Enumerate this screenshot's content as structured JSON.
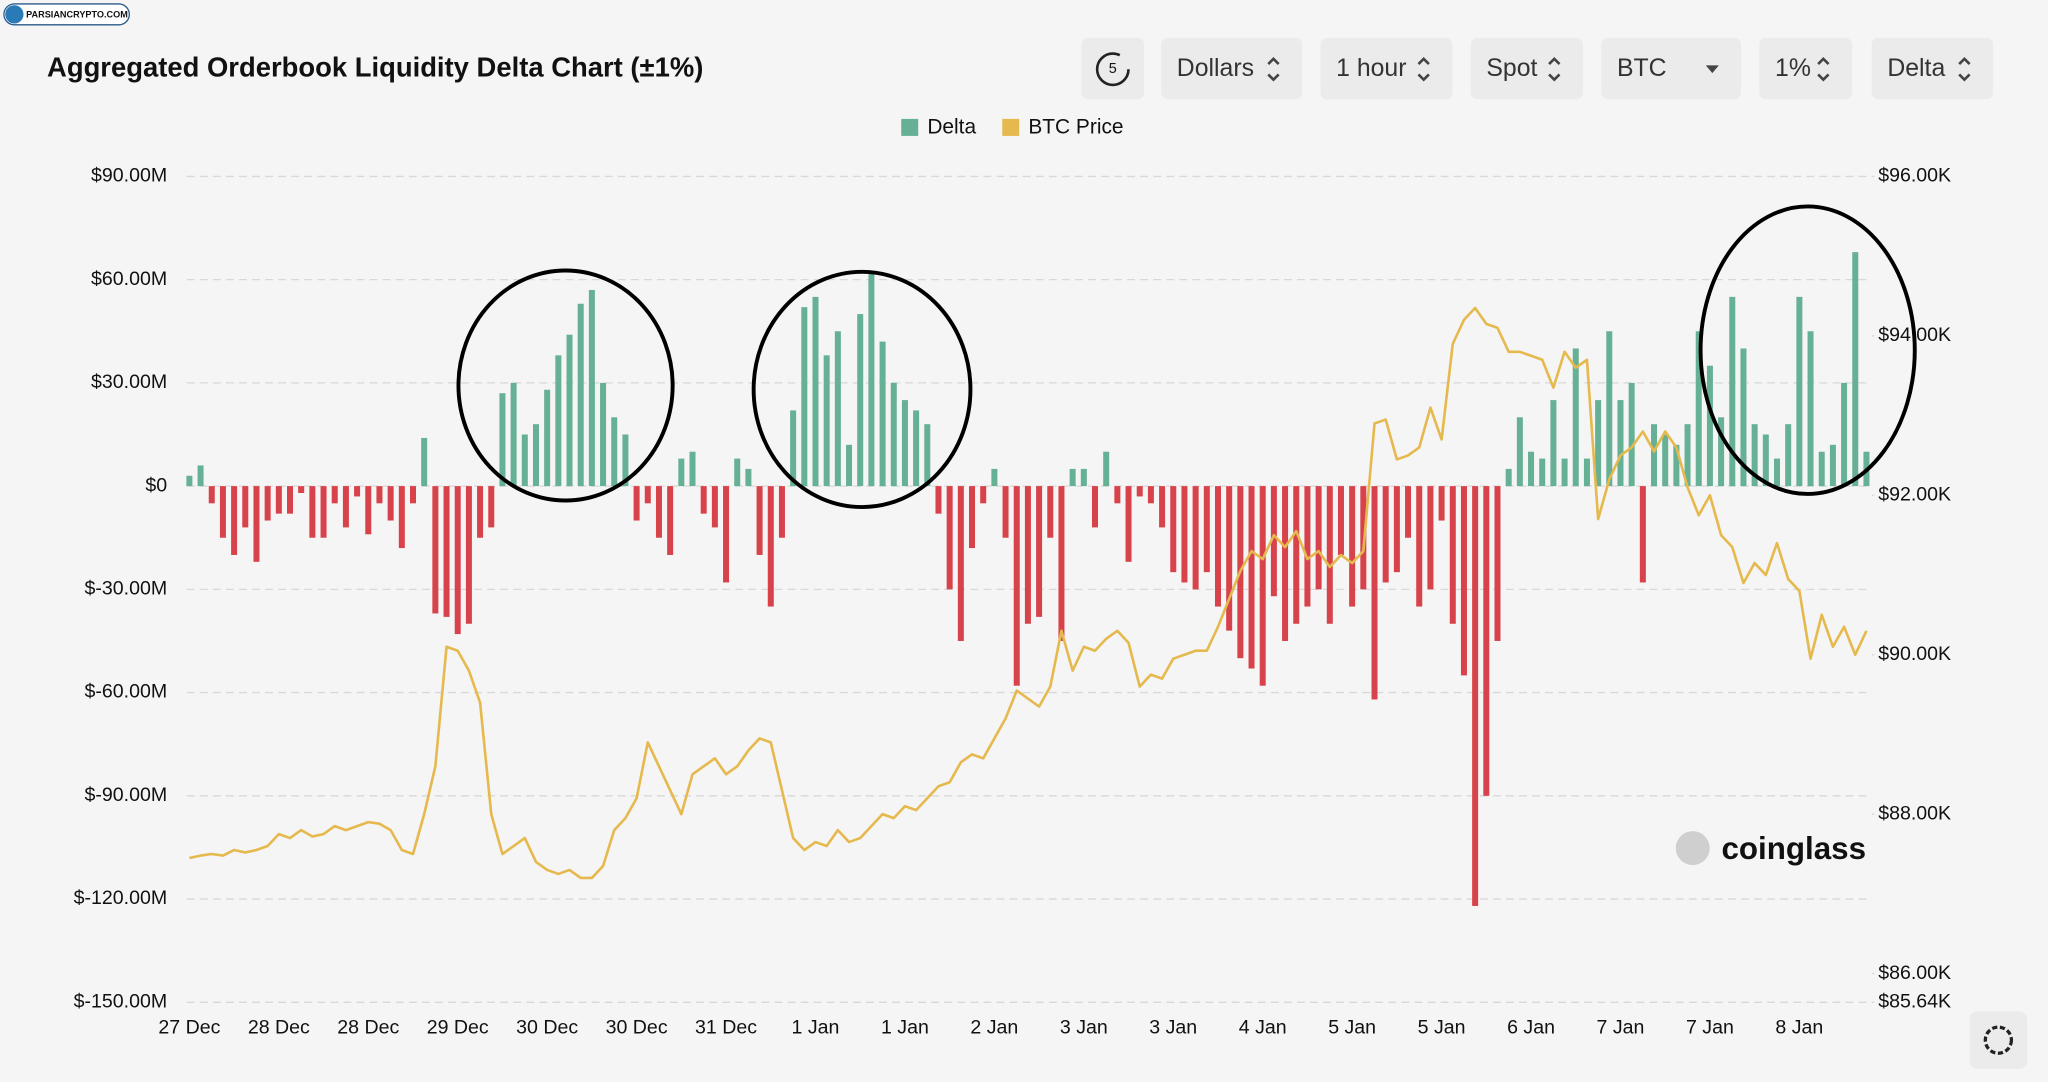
{
  "header": {
    "logo": "PARSIANCRYPTO.COM",
    "refresh": "5",
    "controls": [
      "Dollars",
      "1 hour",
      "Spot",
      "BTC",
      "1%",
      "Delta"
    ]
  },
  "chart_data": {
    "type": "bar",
    "title": "Aggregated Orderbook Liquidity Delta Chart (±1%)",
    "watermark": "coinglass",
    "grid": true,
    "categories": [
      "27 Dec",
      null,
      null,
      null,
      null,
      null,
      null,
      null,
      "28 Dec",
      null,
      null,
      null,
      null,
      null,
      null,
      null,
      "28 Dec",
      null,
      null,
      null,
      null,
      null,
      null,
      null,
      "29 Dec",
      null,
      null,
      null,
      null,
      null,
      null,
      null,
      "30 Dec",
      null,
      null,
      null,
      null,
      null,
      null,
      null,
      "30 Dec",
      null,
      null,
      null,
      null,
      null,
      null,
      null,
      "31 Dec",
      null,
      null,
      null,
      null,
      null,
      null,
      null,
      "1 Jan",
      null,
      null,
      null,
      null,
      null,
      null,
      null,
      "1 Jan",
      null,
      null,
      null,
      null,
      null,
      null,
      null,
      "2 Jan",
      null,
      null,
      null,
      null,
      null,
      null,
      null,
      "3 Jan",
      null,
      null,
      null,
      null,
      null,
      null,
      null,
      "3 Jan",
      null,
      null,
      null,
      null,
      null,
      null,
      null,
      "4 Jan",
      null,
      null,
      null,
      null,
      null,
      null,
      null,
      "5 Jan",
      null,
      null,
      null,
      null,
      null,
      null,
      null,
      "5 Jan",
      null,
      null,
      null,
      null,
      null,
      null,
      null,
      "6 Jan",
      null,
      null,
      null,
      null,
      null,
      null,
      null,
      "7 Jan",
      null,
      null,
      null,
      null,
      null,
      null,
      null,
      "7 Jan",
      null,
      null,
      null,
      null,
      null,
      null,
      null,
      "8 Jan",
      null,
      null,
      null,
      null,
      null,
      null
    ],
    "series": [
      {
        "name": "Delta",
        "type": "bar",
        "color": "#66b095",
        "negative_color": "#d8424a",
        "values": [
          3,
          6,
          -5,
          -15,
          -20,
          -12,
          -22,
          -10,
          -8,
          -8,
          -2,
          -15,
          -15,
          -5,
          -12,
          -3,
          -14,
          -5,
          -10,
          -18,
          -5,
          14,
          -37,
          -38,
          -43,
          -40,
          -15,
          -12,
          27,
          30,
          15,
          18,
          28,
          38,
          44,
          53,
          57,
          30,
          20,
          15,
          -10,
          -5,
          -15,
          -20,
          8,
          10,
          -8,
          -12,
          -28,
          8,
          5,
          -20,
          -35,
          -15,
          22,
          52,
          55,
          38,
          45,
          12,
          50,
          62,
          42,
          30,
          25,
          22,
          18,
          -8,
          -30,
          -45,
          -18,
          -5,
          5,
          -15,
          -58,
          -40,
          -38,
          -15,
          -45,
          5,
          5,
          -12,
          10,
          -5,
          -22,
          -3,
          -5,
          -12,
          -25,
          -28,
          -30,
          -25,
          -35,
          -42,
          -50,
          -53,
          -58,
          -32,
          -45,
          -40,
          -35,
          -30,
          -40,
          -20,
          -35,
          -30,
          -62,
          -28,
          -25,
          -15,
          -35,
          -30,
          -10,
          -40,
          -55,
          -122,
          -90,
          -45,
          5,
          20,
          10,
          8,
          25,
          8,
          40,
          8,
          25,
          45,
          25,
          30,
          -28,
          18,
          15,
          12,
          18,
          45,
          35,
          20,
          55,
          40,
          18,
          15,
          8,
          18,
          55,
          45,
          10,
          12,
          30,
          68,
          10
        ]
      },
      {
        "name": "BTC Price",
        "type": "line",
        "axis": "y2",
        "color": "#e5b94e",
        "values": [
          87.45,
          87.48,
          87.5,
          87.48,
          87.55,
          87.52,
          87.55,
          87.6,
          87.75,
          87.7,
          87.8,
          87.72,
          87.75,
          87.85,
          87.8,
          87.85,
          87.9,
          87.88,
          87.8,
          87.55,
          87.5,
          88.0,
          88.6,
          90.1,
          90.05,
          89.8,
          89.4,
          88.0,
          87.5,
          87.6,
          87.7,
          87.4,
          87.3,
          87.25,
          87.3,
          87.2,
          87.2,
          87.35,
          87.8,
          87.95,
          88.2,
          88.9,
          88.6,
          88.3,
          88.0,
          88.5,
          88.6,
          88.7,
          88.5,
          88.6,
          88.8,
          88.95,
          88.9,
          88.3,
          87.7,
          87.55,
          87.65,
          87.6,
          87.8,
          87.65,
          87.7,
          87.85,
          88.0,
          87.95,
          88.1,
          88.05,
          88.2,
          88.35,
          88.4,
          88.65,
          88.75,
          88.7,
          88.95,
          89.2,
          89.55,
          89.45,
          89.35,
          89.6,
          90.3,
          89.8,
          90.1,
          90.05,
          90.2,
          90.3,
          90.15,
          89.6,
          89.75,
          89.7,
          89.95,
          90.0,
          90.05,
          90.05,
          90.35,
          90.7,
          91.05,
          91.3,
          91.2,
          91.5,
          91.35,
          91.55,
          91.2,
          91.3,
          91.1,
          91.25,
          91.15,
          91.3,
          92.9,
          92.95,
          92.45,
          92.5,
          92.6,
          93.1,
          92.7,
          93.9,
          94.2,
          94.35,
          94.15,
          94.1,
          93.8,
          93.8,
          93.75,
          93.7,
          93.35,
          93.8,
          93.6,
          93.7,
          91.7,
          92.2,
          92.5,
          92.6,
          92.8,
          92.55,
          92.8,
          92.6,
          92.1,
          91.75,
          92.0,
          91.5,
          91.35,
          90.9,
          91.15,
          91.0,
          91.4,
          90.95,
          90.8,
          89.95,
          90.5,
          90.1,
          90.35,
          90.0,
          90.3
        ]
      }
    ],
    "ylim": [
      -150,
      90
    ],
    "yticks": [
      {
        "value": -150,
        "label": "$-150.00M"
      },
      {
        "value": -120,
        "label": "$-120.00M"
      },
      {
        "value": -90,
        "label": "$-90.00M"
      },
      {
        "value": -60,
        "label": "$-60.00M"
      },
      {
        "value": -30,
        "label": "$-30.00M"
      },
      {
        "value": 0,
        "label": "$0"
      },
      {
        "value": 30,
        "label": "$30.00M"
      },
      {
        "value": 60,
        "label": "$60.00M"
      },
      {
        "value": 90,
        "label": "$90.00M"
      }
    ],
    "y2lim": [
      85.64,
      96
    ],
    "y2ticks": [
      {
        "value": 85.64,
        "label": "$85.64K"
      },
      {
        "value": 86,
        "label": "$86.00K"
      },
      {
        "value": 88,
        "label": "$88.00K"
      },
      {
        "value": 90,
        "label": "$90.00K"
      },
      {
        "value": 92,
        "label": "$92.00K"
      },
      {
        "value": 94,
        "label": "$94.00K"
      },
      {
        "value": 96,
        "label": "$96.00K"
      }
    ]
  }
}
